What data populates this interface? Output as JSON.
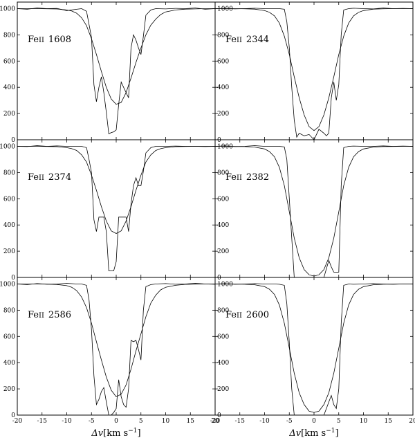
{
  "chart_data": [
    {
      "type": "line",
      "label": "Fe II 1608",
      "label_parts": [
        "Fe",
        "II",
        "1608"
      ],
      "series": [
        {
          "x": [
            -20,
            -18,
            -16,
            -14,
            -12,
            -10,
            -8,
            -7,
            -6,
            -5.5,
            -5,
            -4.5,
            -4,
            -3.5,
            -3,
            -2.5,
            -2,
            -1.5,
            -1,
            -0.5,
            0,
            0.5,
            1,
            1.5,
            2,
            2.5,
            3,
            3.5,
            4,
            4.5,
            5,
            5.5,
            6,
            7,
            8,
            10,
            12,
            14,
            16,
            18,
            20
          ],
          "y": [
            1000,
            995,
            1005,
            1000,
            1002,
            985,
            995,
            1000,
            980,
            880,
            780,
            420,
            290,
            400,
            480,
            360,
            210,
            45,
            55,
            60,
            75,
            270,
            440,
            400,
            360,
            320,
            700,
            800,
            760,
            700,
            650,
            790,
            950,
            990,
            1000,
            998,
            1002,
            1000,
            1005,
            995,
            1000
          ]
        },
        {
          "x": [
            -20,
            -18,
            -16,
            -14,
            -12,
            -10,
            -9,
            -8,
            -7,
            -6,
            -5,
            -4,
            -3,
            -2,
            -1,
            0,
            1,
            2,
            3,
            4,
            5,
            6,
            7,
            8,
            9,
            10,
            12,
            14,
            16,
            18,
            20
          ],
          "y": [
            1000,
            1000,
            1000,
            999,
            997,
            990,
            982,
            965,
            930,
            870,
            770,
            650,
            520,
            400,
            310,
            270,
            285,
            360,
            470,
            590,
            700,
            800,
            875,
            920,
            955,
            975,
            990,
            996,
            998,
            1000,
            1000
          ]
        }
      ]
    },
    {
      "type": "line",
      "label": "Fe II 2344",
      "label_parts": [
        "Fe",
        "II",
        "2344"
      ],
      "series": [
        {
          "x": [
            -20,
            -18,
            -16,
            -14,
            -12,
            -10,
            -8,
            -7,
            -6,
            -5.5,
            -5,
            -4.5,
            -4,
            -3.5,
            -3,
            -2,
            -1,
            0,
            1,
            2,
            2.5,
            3,
            3.5,
            4,
            4.5,
            5,
            5.5,
            6,
            7,
            8,
            10,
            12,
            14,
            16,
            18,
            20
          ],
          "y": [
            1000,
            1002,
            998,
            1000,
            1003,
            1000,
            1000,
            1000,
            995,
            900,
            700,
            400,
            150,
            20,
            50,
            30,
            40,
            0,
            80,
            50,
            30,
            50,
            320,
            440,
            300,
            420,
            800,
            990,
            1000,
            1003,
            1000,
            998,
            1005,
            1000,
            1002,
            1000
          ]
        },
        {
          "x": [
            -20,
            -18,
            -16,
            -14,
            -12,
            -10,
            -9,
            -8,
            -7,
            -6,
            -5,
            -4,
            -3,
            -2,
            -1,
            0,
            1,
            2,
            3,
            4,
            5,
            6,
            7,
            8,
            9,
            10,
            12,
            14,
            16,
            18,
            20
          ],
          "y": [
            1000,
            1000,
            1000,
            999,
            996,
            985,
            972,
            945,
            890,
            790,
            650,
            480,
            320,
            190,
            100,
            70,
            100,
            190,
            320,
            480,
            650,
            790,
            890,
            945,
            972,
            985,
            996,
            999,
            1000,
            1000,
            1000
          ]
        }
      ]
    },
    {
      "type": "line",
      "label": "Fe II 2374",
      "label_parts": [
        "Fe",
        "II",
        "2374"
      ],
      "series": [
        {
          "x": [
            -20,
            -18,
            -16,
            -14,
            -12,
            -10,
            -8,
            -7,
            -6,
            -5.5,
            -5,
            -4.5,
            -4,
            -3.5,
            -3,
            -2.5,
            -2,
            -1.5,
            -1,
            -0.5,
            0,
            0.5,
            1,
            1.5,
            2,
            2.5,
            3,
            3.5,
            4,
            4.5,
            5,
            5.5,
            6,
            7,
            8,
            10,
            12,
            14,
            16,
            18,
            20
          ],
          "y": [
            1000,
            998,
            1005,
            1000,
            1003,
            1000,
            1000,
            1000,
            990,
            900,
            800,
            440,
            350,
            460,
            460,
            460,
            350,
            50,
            50,
            50,
            120,
            460,
            460,
            460,
            460,
            350,
            560,
            700,
            760,
            700,
            700,
            810,
            950,
            990,
            1000,
            1000,
            1002,
            1000,
            1000,
            998,
            1000
          ]
        },
        {
          "x": [
            -20,
            -18,
            -16,
            -14,
            -12,
            -10,
            -9,
            -8,
            -7,
            -6,
            -5,
            -4,
            -3,
            -2,
            -1,
            0,
            1,
            2,
            3,
            4,
            5,
            6,
            7,
            8,
            9,
            10,
            12,
            14,
            16,
            18,
            20
          ],
          "y": [
            1000,
            1000,
            1000,
            999,
            997,
            990,
            982,
            968,
            935,
            880,
            780,
            665,
            540,
            430,
            355,
            335,
            355,
            430,
            540,
            665,
            780,
            880,
            935,
            968,
            982,
            990,
            997,
            999,
            1000,
            1000,
            1000
          ]
        }
      ]
    },
    {
      "type": "line",
      "label": "Fe II 2382",
      "label_parts": [
        "Fe",
        "II",
        "2382"
      ],
      "series": [
        {
          "x": [
            -20,
            -18,
            -16,
            -14,
            -12,
            -10,
            -8,
            -7,
            -6,
            -5.5,
            -5,
            -4.5,
            -4,
            -3.5,
            -3,
            -2,
            -1,
            0,
            1,
            2,
            3,
            3.5,
            4,
            4.5,
            5,
            5.5,
            6,
            7,
            8,
            10,
            12,
            14,
            16,
            18,
            20
          ],
          "y": [
            1000,
            1003,
            998,
            1000,
            1005,
            1000,
            1000,
            1000,
            995,
            900,
            600,
            300,
            0,
            0,
            0,
            0,
            0,
            0,
            0,
            0,
            130,
            80,
            40,
            40,
            40,
            700,
            990,
            1000,
            1002,
            1000,
            1000,
            1003,
            1000,
            1002,
            1000
          ]
        },
        {
          "x": [
            -20,
            -18,
            -16,
            -14,
            -12,
            -10,
            -9,
            -8,
            -7,
            -6,
            -5,
            -4,
            -3,
            -2,
            -1,
            0,
            1,
            2,
            3,
            4,
            5,
            6,
            7,
            8,
            9,
            10,
            12,
            14,
            16,
            18,
            20
          ],
          "y": [
            1000,
            1000,
            999,
            998,
            994,
            980,
            960,
            920,
            840,
            700,
            500,
            300,
            150,
            60,
            20,
            10,
            20,
            60,
            150,
            300,
            500,
            700,
            840,
            920,
            960,
            980,
            994,
            998,
            999,
            1000,
            1000
          ]
        }
      ]
    },
    {
      "type": "line",
      "label": "Fe II 2586",
      "label_parts": [
        "Fe",
        "II",
        "2586"
      ],
      "series": [
        {
          "x": [
            -20,
            -18,
            -16,
            -14,
            -12,
            -10,
            -8,
            -7,
            -6,
            -5.5,
            -5,
            -4.5,
            -4,
            -3.5,
            -3,
            -2.5,
            -2,
            -1.5,
            -1,
            -0.5,
            0,
            0.5,
            1,
            1.5,
            2,
            2.5,
            3,
            3.5,
            4,
            4.5,
            5,
            5.5,
            6,
            7,
            8,
            10,
            12,
            14,
            16,
            18,
            20
          ],
          "y": [
            1000,
            995,
            1003,
            998,
            1000,
            1005,
            1000,
            1000,
            990,
            880,
            650,
            300,
            80,
            120,
            180,
            210,
            100,
            0,
            0,
            20,
            50,
            270,
            140,
            80,
            60,
            200,
            570,
            560,
            570,
            500,
            420,
            800,
            980,
            995,
            1000,
            1003,
            998,
            1000,
            1005,
            1000,
            998
          ]
        },
        {
          "x": [
            -20,
            -18,
            -16,
            -14,
            -12,
            -10,
            -9,
            -8,
            -7,
            -6,
            -5,
            -4,
            -3,
            -2,
            -1,
            0,
            1,
            2,
            3,
            4,
            5,
            6,
            7,
            8,
            9,
            10,
            12,
            14,
            16,
            18,
            20
          ],
          "y": [
            1000,
            1000,
            1000,
            999,
            996,
            987,
            975,
            950,
            900,
            820,
            700,
            560,
            420,
            290,
            190,
            140,
            160,
            230,
            350,
            490,
            620,
            750,
            855,
            915,
            955,
            975,
            990,
            997,
            999,
            1000,
            1000
          ]
        }
      ]
    },
    {
      "type": "line",
      "label": "Fe II 2600",
      "label_parts": [
        "Fe",
        "II",
        "2600"
      ],
      "series": [
        {
          "x": [
            -20,
            -18,
            -16,
            -14,
            -12,
            -10,
            -8,
            -7,
            -6,
            -5.5,
            -5,
            -4.5,
            -4,
            -3.5,
            -3,
            -2,
            -1,
            0,
            1,
            2,
            2.5,
            3,
            3.5,
            4,
            4.5,
            5,
            5.5,
            6,
            7,
            8,
            10,
            12,
            14,
            16,
            18,
            20
          ],
          "y": [
            1000,
            1002,
            998,
            1000,
            1003,
            1000,
            1000,
            998,
            990,
            850,
            550,
            200,
            0,
            0,
            0,
            0,
            0,
            0,
            0,
            0,
            50,
            100,
            150,
            80,
            50,
            200,
            700,
            990,
            1000,
            998,
            1000,
            1003,
            1000,
            998,
            1000,
            1000
          ]
        },
        {
          "x": [
            -20,
            -18,
            -16,
            -14,
            -12,
            -10,
            -9,
            -8,
            -7,
            -6,
            -5,
            -4,
            -3,
            -2,
            -1,
            0,
            1,
            2,
            3,
            4,
            5,
            6,
            7,
            8,
            9,
            10,
            12,
            14,
            16,
            18,
            20
          ],
          "y": [
            1000,
            1000,
            999,
            998,
            994,
            980,
            960,
            920,
            840,
            700,
            510,
            320,
            170,
            80,
            30,
            20,
            30,
            80,
            170,
            320,
            510,
            700,
            840,
            920,
            960,
            980,
            994,
            998,
            999,
            1000,
            1000
          ]
        }
      ]
    }
  ],
  "axes": {
    "xlim": [
      -20,
      20
    ],
    "ylim": [
      0,
      1050
    ],
    "y_ticks": [
      0,
      200,
      400,
      600,
      800,
      1000
    ],
    "x_ticks": [
      -20,
      -15,
      -10,
      -5,
      0,
      5,
      10,
      15,
      20
    ],
    "grid": false
  },
  "xaxis_label": {
    "symbol": "Δv",
    "bracket_open": "[",
    "unit": "km s",
    "exponent": "−1",
    "bracket_close": "]"
  }
}
